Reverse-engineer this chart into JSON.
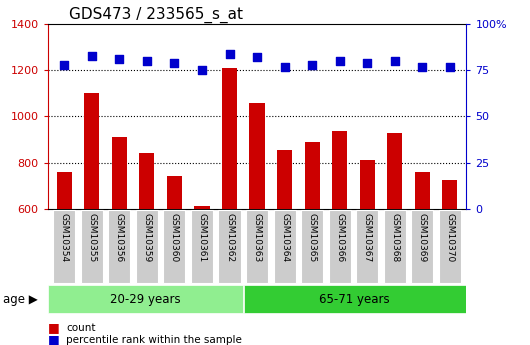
{
  "title": "GDS473 / 233565_s_at",
  "samples": [
    "GSM10354",
    "GSM10355",
    "GSM10356",
    "GSM10359",
    "GSM10360",
    "GSM10361",
    "GSM10362",
    "GSM10363",
    "GSM10364",
    "GSM10365",
    "GSM10366",
    "GSM10367",
    "GSM10368",
    "GSM10369",
    "GSM10370"
  ],
  "counts": [
    760,
    1100,
    910,
    840,
    740,
    610,
    1210,
    1060,
    855,
    890,
    935,
    810,
    930,
    760,
    725
  ],
  "percentile_ranks": [
    78,
    83,
    81,
    80,
    79,
    75,
    84,
    82,
    77,
    78,
    80,
    79,
    80,
    77,
    77
  ],
  "groups": [
    {
      "label": "20-29 years",
      "start": 0,
      "end": 7,
      "color": "#90EE90"
    },
    {
      "label": "65-71 years",
      "start": 7,
      "end": 15,
      "color": "#33CC33"
    }
  ],
  "ylim_left": [
    600,
    1400
  ],
  "ylim_right": [
    0,
    100
  ],
  "yticks_left": [
    600,
    800,
    1000,
    1200,
    1400
  ],
  "yticks_right": [
    0,
    25,
    50,
    75,
    100
  ],
  "bar_color": "#CC0000",
  "dot_color": "#0000CC",
  "left_axis_color": "#CC0000",
  "right_axis_color": "#0000CC",
  "xtick_bg_color": "#CCCCCC",
  "group_border_color": "#FFFFFF",
  "age_label": "age ▶",
  "legend": [
    {
      "color": "#CC0000",
      "label": "count"
    },
    {
      "color": "#0000CC",
      "label": "percentile rank within the sample"
    }
  ]
}
